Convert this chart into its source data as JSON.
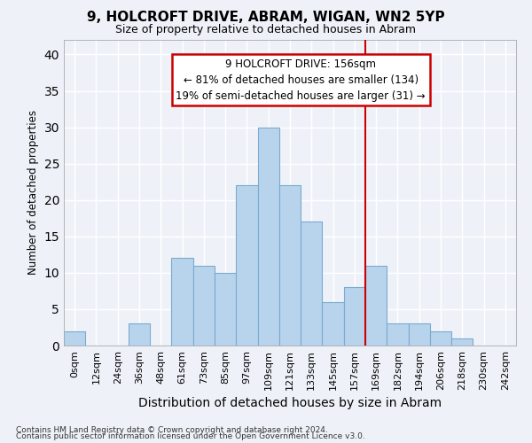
{
  "title1": "9, HOLCROFT DRIVE, ABRAM, WIGAN, WN2 5YP",
  "title2": "Size of property relative to detached houses in Abram",
  "xlabel": "Distribution of detached houses by size in Abram",
  "ylabel": "Number of detached properties",
  "footnote1": "Contains HM Land Registry data © Crown copyright and database right 2024.",
  "footnote2": "Contains public sector information licensed under the Open Government Licence v3.0.",
  "bar_labels": [
    "0sqm",
    "12sqm",
    "24sqm",
    "36sqm",
    "48sqm",
    "61sqm",
    "73sqm",
    "85sqm",
    "97sqm",
    "109sqm",
    "121sqm",
    "133sqm",
    "145sqm",
    "157sqm",
    "169sqm",
    "182sqm",
    "194sqm",
    "206sqm",
    "218sqm",
    "230sqm",
    "242sqm"
  ],
  "bar_values": [
    2,
    0,
    0,
    3,
    0,
    12,
    11,
    10,
    22,
    30,
    22,
    17,
    6,
    8,
    11,
    3,
    3,
    2,
    1,
    0,
    0
  ],
  "bar_color": "#b8d4ed",
  "bar_edge_color": "#7aaace",
  "background_color": "#eef2f8",
  "grid_color": "#ffffff",
  "vline_x": 13.5,
  "vline_color": "#cc0000",
  "annotation_title": "9 HOLCROFT DRIVE: 156sqm",
  "annotation_line1": "← 81% of detached houses are smaller (134)",
  "annotation_line2": "19% of semi-detached houses are larger (31) →",
  "annotation_box_color": "#ffffff",
  "annotation_border_color": "#cc0000",
  "ylim": [
    0,
    42
  ],
  "yticks": [
    0,
    5,
    10,
    15,
    20,
    25,
    30,
    35,
    40
  ]
}
